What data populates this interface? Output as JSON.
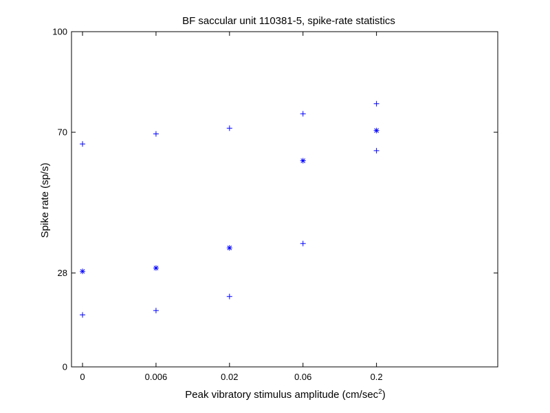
{
  "chart_data": {
    "type": "scatter",
    "title": "BF saccular unit 110381-5, spike-rate statistics",
    "xlabel": "Peak vibratory stimulus amplitude (cm/sec",
    "xlabel_sup": "2",
    "xlabel_end": ")",
    "ylabel": "Spike rate (sp/s)",
    "x_categories": [
      "0",
      "0.006",
      "0.02",
      "0.06",
      "0.2"
    ],
    "xlim": [
      -0.15,
      5.65
    ],
    "yticks": [
      0,
      28,
      70,
      100
    ],
    "ylim": [
      0,
      100
    ],
    "grid": false,
    "legend": "none",
    "marker_color": "#0000ff",
    "series": [
      {
        "marker": "plus",
        "points": [
          {
            "x": "0",
            "y": 66.5
          },
          {
            "x": "0.006",
            "y": 69.5
          },
          {
            "x": "0.02",
            "y": 71.2
          },
          {
            "x": "0.06",
            "y": 75.5
          },
          {
            "x": "0.2",
            "y": 78.5
          }
        ]
      },
      {
        "marker": "star",
        "points": [
          {
            "x": "0",
            "y": 28.5
          },
          {
            "x": "0.006",
            "y": 29.5
          },
          {
            "x": "0.02",
            "y": 35.5
          },
          {
            "x": "0.06",
            "y": 61.5
          },
          {
            "x": "0.2",
            "y": 70.5
          }
        ]
      },
      {
        "marker": "plus",
        "points": [
          {
            "x": "0",
            "y": 15.5
          },
          {
            "x": "0.006",
            "y": 16.8
          },
          {
            "x": "0.02",
            "y": 21.0
          },
          {
            "x": "0.06",
            "y": 36.8
          },
          {
            "x": "0.2",
            "y": 64.5
          }
        ]
      }
    ]
  }
}
